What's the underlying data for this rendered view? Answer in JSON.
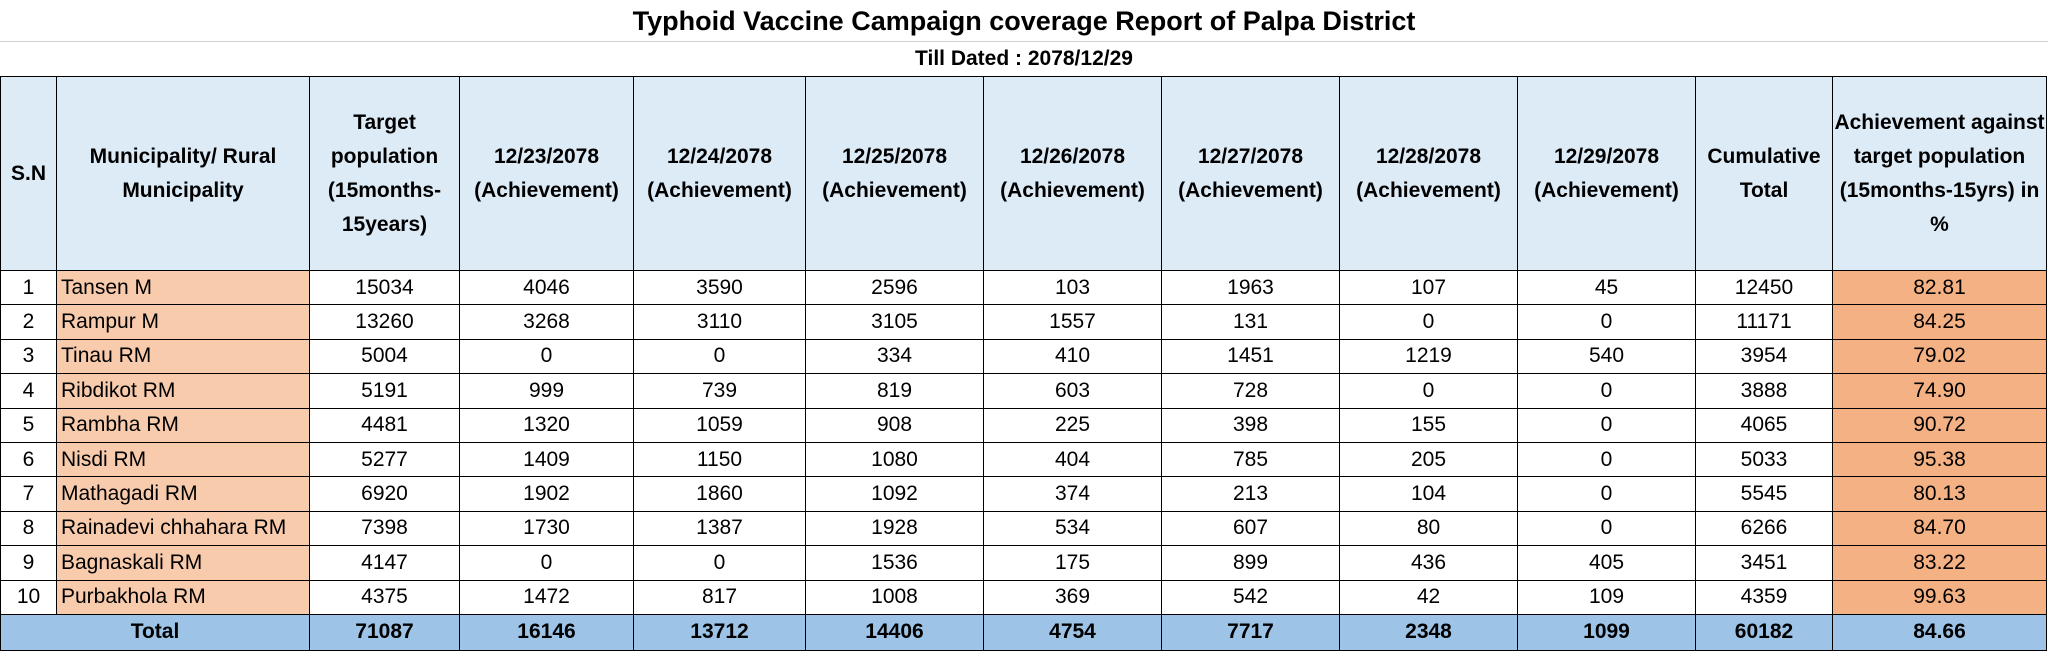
{
  "report": {
    "title": "Typhoid Vaccine Campaign coverage Report of Palpa District",
    "subtitle": "Till Dated : 2078/12/29"
  },
  "headers": {
    "sn": "S.N",
    "municipality": "Municipality/ Rural Municipality",
    "target": "Target population (15months-15years)",
    "d1": "12/23/2078 (Achievement)",
    "d2": "12/24/2078 (Achievement)",
    "d3": "12/25/2078 (Achievement)",
    "d4": "12/26/2078 (Achievement)",
    "d5": "12/27/2078 (Achievement)",
    "d6": "12/28/2078 (Achievement)",
    "d7": "12/29/2078 (Achievement)",
    "cumulative": "Cumulative Total",
    "percent": "Achievement against target population (15months-15yrs) in %"
  },
  "rows": [
    {
      "sn": "1",
      "name": "Tansen M",
      "target": "15034",
      "d1": "4046",
      "d2": "3590",
      "d3": "2596",
      "d4": "103",
      "d5": "1963",
      "d6": "107",
      "d7": "45",
      "cum": "12450",
      "pct": "82.81"
    },
    {
      "sn": "2",
      "name": "Rampur M",
      "target": "13260",
      "d1": "3268",
      "d2": "3110",
      "d3": "3105",
      "d4": "1557",
      "d5": "131",
      "d6": "0",
      "d7": "0",
      "cum": "11171",
      "pct": "84.25"
    },
    {
      "sn": "3",
      "name": "Tinau RM",
      "target": "5004",
      "d1": "0",
      "d2": "0",
      "d3": "334",
      "d4": "410",
      "d5": "1451",
      "d6": "1219",
      "d7": "540",
      "cum": "3954",
      "pct": "79.02"
    },
    {
      "sn": "4",
      "name": "Ribdikot RM",
      "target": "5191",
      "d1": "999",
      "d2": "739",
      "d3": "819",
      "d4": "603",
      "d5": "728",
      "d6": "0",
      "d7": "0",
      "cum": "3888",
      "pct": "74.90"
    },
    {
      "sn": "5",
      "name": "Rambha RM",
      "target": "4481",
      "d1": "1320",
      "d2": "1059",
      "d3": "908",
      "d4": "225",
      "d5": "398",
      "d6": "155",
      "d7": "0",
      "cum": "4065",
      "pct": "90.72"
    },
    {
      "sn": "6",
      "name": "Nisdi RM",
      "target": "5277",
      "d1": "1409",
      "d2": "1150",
      "d3": "1080",
      "d4": "404",
      "d5": "785",
      "d6": "205",
      "d7": "0",
      "cum": "5033",
      "pct": "95.38"
    },
    {
      "sn": "7",
      "name": "Mathagadi RM",
      "target": "6920",
      "d1": "1902",
      "d2": "1860",
      "d3": "1092",
      "d4": "374",
      "d5": "213",
      "d6": "104",
      "d7": "0",
      "cum": "5545",
      "pct": "80.13"
    },
    {
      "sn": "8",
      "name": "Rainadevi chhahara RM",
      "target": "7398",
      "d1": "1730",
      "d2": "1387",
      "d3": "1928",
      "d4": "534",
      "d5": "607",
      "d6": "80",
      "d7": "0",
      "cum": "6266",
      "pct": "84.70"
    },
    {
      "sn": "9",
      "name": "Bagnaskali RM",
      "target": "4147",
      "d1": "0",
      "d2": "0",
      "d3": "1536",
      "d4": "175",
      "d5": "899",
      "d6": "436",
      "d7": "405",
      "cum": "3451",
      "pct": "83.22"
    },
    {
      "sn": "10",
      "name": "Purbakhola RM",
      "target": "4375",
      "d1": "1472",
      "d2": "817",
      "d3": "1008",
      "d4": "369",
      "d5": "542",
      "d6": "42",
      "d7": "109",
      "cum": "4359",
      "pct": "99.63"
    }
  ],
  "total": {
    "label": "Total",
    "target": "71087",
    "d1": "16146",
    "d2": "13712",
    "d3": "14406",
    "d4": "4754",
    "d5": "7717",
    "d6": "2348",
    "d7": "1099",
    "cum": "60182",
    "pct": "84.66"
  }
}
